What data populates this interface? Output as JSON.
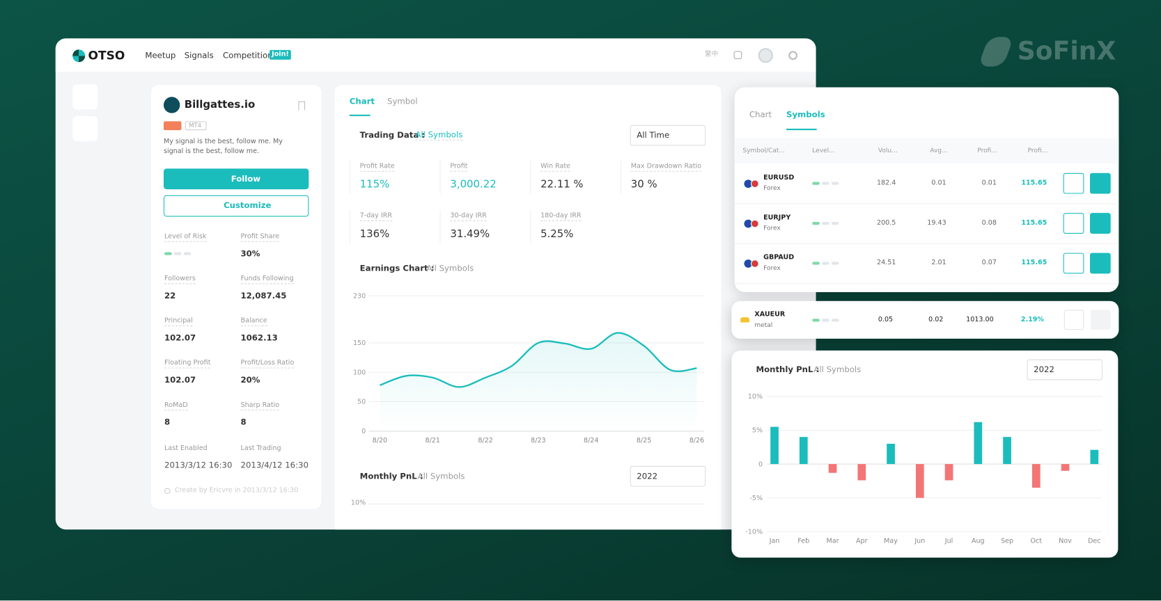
{
  "brand": "SoFinX",
  "nav": {
    "logo": "OTSO",
    "links": [
      "Meetup",
      "Signals",
      "Competition"
    ],
    "badge": "Join!",
    "language": "繁中"
  },
  "profile": {
    "name": "Billgattes.io",
    "platform": "MT4",
    "description": "My signal is the best, follow me. My signal is the best, follow me.",
    "follow": "Follow",
    "customize": "Customize",
    "risk": {
      "label": "Level of Risk",
      "level": 1
    },
    "stats": [
      {
        "label": "Profit Share",
        "value": "30%"
      },
      {
        "label": "Followers",
        "value": "22"
      },
      {
        "label": "Funds Following",
        "value": "12,087.45"
      },
      {
        "label": "Principal",
        "value": "102.07"
      },
      {
        "label": "Balance",
        "value": "1062.13"
      },
      {
        "label": "Floating Profit",
        "value": "102.07"
      },
      {
        "label": "Profit/Loss Ratio",
        "value": "20%"
      },
      {
        "label": "RoMaD",
        "value": "8"
      },
      {
        "label": "Sharp Ratio",
        "value": "8"
      },
      {
        "label": "Last Enabled",
        "value": "2013/3/12 16:30"
      },
      {
        "label": "Last Trading",
        "value": "2013/4/12 16:30"
      }
    ],
    "footer": "Create by Ericvre in 2013/3/12 16:30"
  },
  "overview": {
    "tabs": [
      "Chart",
      "Symbol"
    ],
    "trading_data": {
      "title": "Trading Data :",
      "filter": "All Symbols",
      "period": "All Time",
      "metrics": [
        {
          "label": "Profit Rate",
          "value": "115%"
        },
        {
          "label": "Profit",
          "value": "3,000.22"
        },
        {
          "label": "Win Rate",
          "value": "22.11 %"
        },
        {
          "label": "Max Drawdown Ratio",
          "value": "30 %"
        },
        {
          "label": "7-day IRR",
          "value": "136%"
        },
        {
          "label": "30-day IRR",
          "value": "31.49%"
        },
        {
          "label": "180-day IRR",
          "value": "5.25%"
        }
      ]
    },
    "earnings_chart": {
      "title": "Earnings Chart :",
      "filter": "All Symbols",
      "chart_data": {
        "type": "line",
        "categories": [
          "8/20",
          null,
          "8/21",
          null,
          "8/22",
          null,
          "8/23",
          null,
          "8/24",
          null,
          "8/25",
          null,
          "8/26"
        ],
        "values": [
          78,
          94,
          91,
          75,
          91,
          111,
          150,
          149,
          140,
          167,
          145,
          104,
          107
        ],
        "color": "#1bbcbc",
        "ylim": [
          0,
          230
        ],
        "yticks": [
          0,
          50,
          100,
          150,
          230
        ],
        "grid": true
      }
    },
    "monthly_pnl": {
      "title": "Monthly PnL :",
      "filter": "All Symbols",
      "year": "2022",
      "first_tick": "10%"
    }
  },
  "symbols": {
    "tabs": [
      "Chart",
      "Symbols"
    ],
    "columns": [
      "Symbol/Cat...",
      "Level...",
      "Volu...",
      "Avg...",
      "Profi...",
      "Profi..."
    ],
    "rows": [
      {
        "symbol": "EURUSD",
        "category": "Forex",
        "level": 1,
        "cells": [
          "182.4",
          "0.01",
          "0.01",
          "115.65"
        ]
      },
      {
        "symbol": "EURJPY",
        "category": "Forex",
        "level": 1,
        "cells": [
          "200.5",
          "19.43",
          "0.08",
          "115.65"
        ]
      },
      {
        "symbol": "GBPAUD",
        "category": "Forex",
        "level": 1,
        "cells": [
          "24.51",
          "2.01",
          "0.07",
          "115.65"
        ]
      }
    ],
    "floating_row": {
      "symbol": "XAUEUR",
      "category": "metal",
      "level": 1,
      "cells": [
        "0.05",
        "0.02",
        "1013.00",
        "2.19%"
      ]
    }
  },
  "monthly_pnl": {
    "title": "Monthly PnL :",
    "filter": "All Symbols",
    "year": "2022",
    "chart_data": {
      "type": "bar",
      "categories": [
        "Jan",
        "Feb",
        "Mar",
        "Apr",
        "May",
        "Jun",
        "Jul",
        "Aug",
        "Sep",
        "Oct",
        "Nov",
        "Dec"
      ],
      "values": [
        5.5,
        4.0,
        -1.3,
        -2.4,
        3.0,
        -5.0,
        -2.4,
        6.2,
        4.0,
        -3.5,
        -1.0,
        2.1
      ],
      "colors": {
        "positive": "#1bbcbc",
        "negative": "#f47575"
      },
      "ylim": [
        -10,
        10
      ],
      "yticks": [
        {
          "value": 10,
          "label": "10%"
        },
        {
          "value": 5,
          "label": "5%"
        },
        0,
        {
          "value": -5,
          "label": "-5%"
        },
        {
          "value": -10,
          "label": "-10%"
        }
      ],
      "grid": true
    }
  }
}
